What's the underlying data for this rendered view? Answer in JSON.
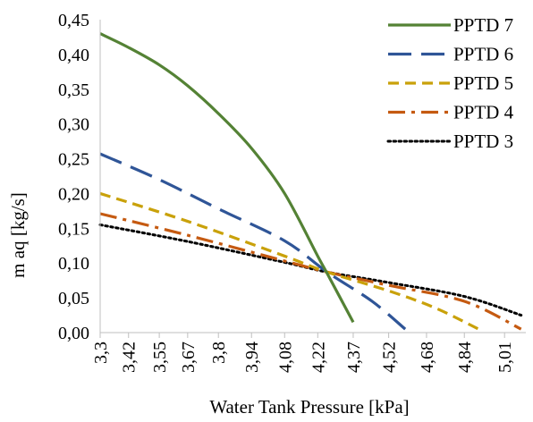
{
  "chart_data": {
    "type": "line",
    "title": "",
    "xlabel": "Water Tank Pressure [kPa]",
    "ylabel": "m aq [kg/s]",
    "ylim": [
      0,
      0.45
    ],
    "yticks": [
      "0,00",
      "0,05",
      "0,10",
      "0,15",
      "0,20",
      "0,25",
      "0,30",
      "0,35",
      "0,40",
      "0,45"
    ],
    "xlim": [
      3.3,
      5.1
    ],
    "xticks": [
      {
        "value": 3.3,
        "label": "3,3"
      },
      {
        "value": 3.42,
        "label": "3,42"
      },
      {
        "value": 3.55,
        "label": "3,55"
      },
      {
        "value": 3.67,
        "label": "3,67"
      },
      {
        "value": 3.8,
        "label": "3,8"
      },
      {
        "value": 3.94,
        "label": "3,94"
      },
      {
        "value": 4.08,
        "label": "4,08"
      },
      {
        "value": 4.22,
        "label": "4,22"
      },
      {
        "value": 4.37,
        "label": "4,37"
      },
      {
        "value": 4.52,
        "label": "4,52"
      },
      {
        "value": 4.68,
        "label": "4,68"
      },
      {
        "value": 4.84,
        "label": "4,84"
      },
      {
        "value": 5.01,
        "label": "5,01"
      }
    ],
    "grid": false,
    "legend_position": "top-right",
    "series": [
      {
        "name": "PPTD 7",
        "color": "#548235",
        "dash": "solid",
        "points": [
          [
            3.3,
            0.43
          ],
          [
            3.42,
            0.41
          ],
          [
            3.55,
            0.385
          ],
          [
            3.67,
            0.355
          ],
          [
            3.8,
            0.315
          ],
          [
            3.94,
            0.265
          ],
          [
            4.08,
            0.2
          ],
          [
            4.22,
            0.11
          ],
          [
            4.26,
            0.085
          ],
          [
            4.37,
            0.015
          ]
        ]
      },
      {
        "name": "PPTD 6",
        "color": "#2f5597",
        "dash": "longdash",
        "points": [
          [
            3.3,
            0.257
          ],
          [
            3.55,
            0.22
          ],
          [
            3.8,
            0.178
          ],
          [
            4.08,
            0.132
          ],
          [
            4.26,
            0.087
          ],
          [
            4.45,
            0.045
          ],
          [
            4.59,
            0.005
          ]
        ]
      },
      {
        "name": "PPTD 5",
        "color": "#c9a10a",
        "dash": "dash",
        "points": [
          [
            3.3,
            0.2
          ],
          [
            3.67,
            0.16
          ],
          [
            4.08,
            0.11
          ],
          [
            4.26,
            0.087
          ],
          [
            4.52,
            0.06
          ],
          [
            4.72,
            0.035
          ],
          [
            4.9,
            0.005
          ]
        ]
      },
      {
        "name": "PPTD 4",
        "color": "#c55a11",
        "dash": "dashdot",
        "points": [
          [
            3.3,
            0.171
          ],
          [
            3.67,
            0.14
          ],
          [
            4.08,
            0.103
          ],
          [
            4.26,
            0.087
          ],
          [
            4.52,
            0.068
          ],
          [
            4.84,
            0.045
          ],
          [
            5.08,
            0.005
          ]
        ]
      },
      {
        "name": "PPTD 3",
        "color": "#000000",
        "dash": "dot",
        "points": [
          [
            3.3,
            0.155
          ],
          [
            3.67,
            0.131
          ],
          [
            4.08,
            0.101
          ],
          [
            4.26,
            0.087
          ],
          [
            4.52,
            0.072
          ],
          [
            4.84,
            0.052
          ],
          [
            5.08,
            0.025
          ]
        ]
      }
    ]
  }
}
